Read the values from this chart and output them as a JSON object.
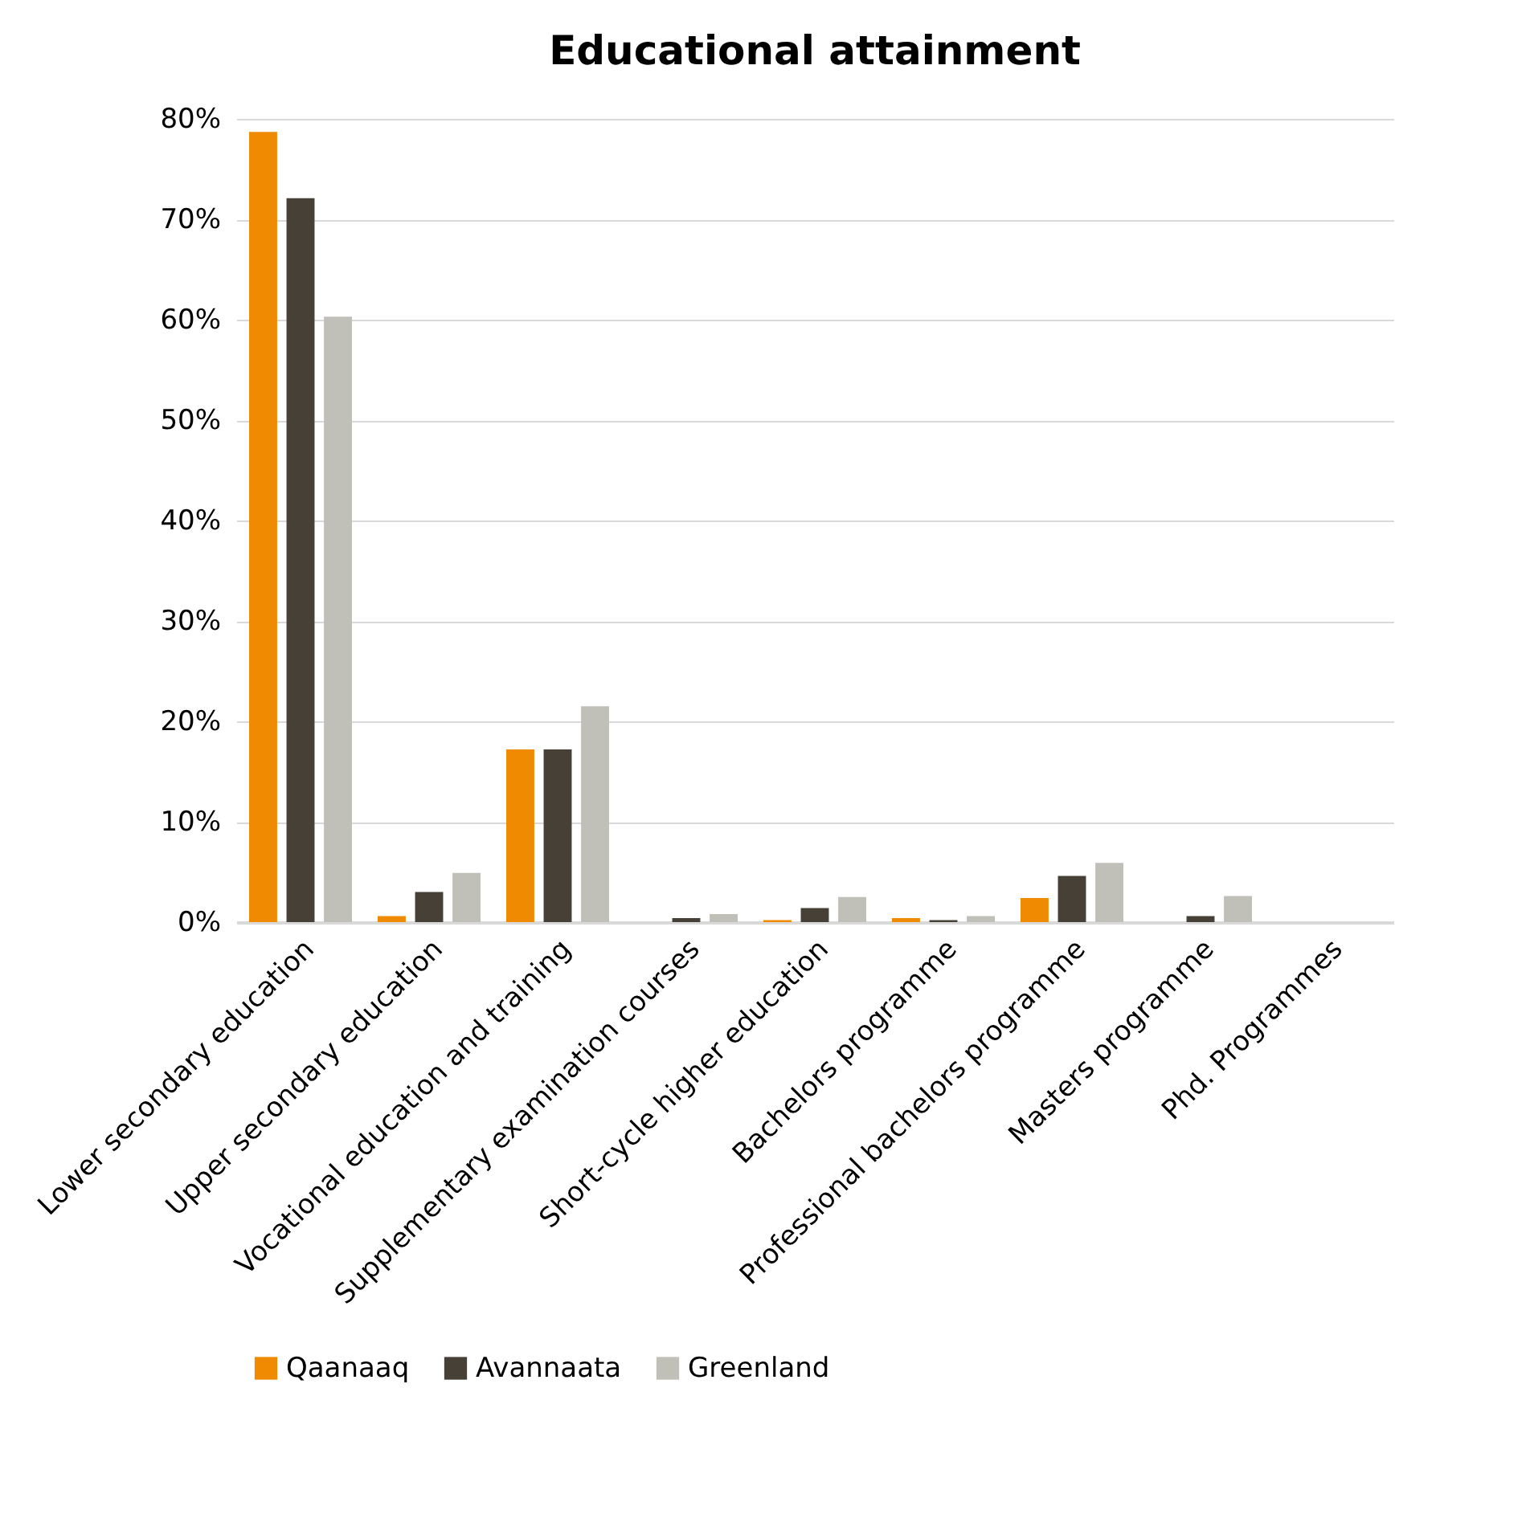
{
  "chart_data": {
    "type": "bar",
    "title": "Educational attainment",
    "categories": [
      "Lower secondary education",
      "Upper secondary education",
      "Vocational education and training",
      "Supplementary examination courses",
      "Short-cycle higher education",
      "Bachelors programme",
      "Professional bachelors programme",
      "Masters programme",
      "Phd. Programmes"
    ],
    "series": [
      {
        "name": "Qaanaaq",
        "color": "#f08a00",
        "values": [
          78.7,
          0.6,
          17.2,
          0,
          0.2,
          0.4,
          2.4,
          0,
          0
        ]
      },
      {
        "name": "Avannaata",
        "color": "#474037",
        "values": [
          72.1,
          3.0,
          17.2,
          0.4,
          1.4,
          0.2,
          4.6,
          0.6,
          0
        ]
      },
      {
        "name": "Greenland",
        "color": "#c0c0b8",
        "values": [
          60.3,
          4.9,
          21.5,
          0.8,
          2.5,
          0.6,
          5.9,
          2.6,
          0
        ]
      }
    ],
    "ylim": [
      0,
      80
    ],
    "yticks": [
      {
        "value": 0,
        "label": "0%"
      },
      {
        "value": 10,
        "label": "10%"
      },
      {
        "value": 20,
        "label": "20%"
      },
      {
        "value": 30,
        "label": "30%"
      },
      {
        "value": 40,
        "label": "40%"
      },
      {
        "value": 50,
        "label": "50%"
      },
      {
        "value": 60,
        "label": "60%"
      },
      {
        "value": 70,
        "label": "70%"
      },
      {
        "value": 80,
        "label": "80%"
      }
    ],
    "grid": "y",
    "legend": "bottom"
  }
}
